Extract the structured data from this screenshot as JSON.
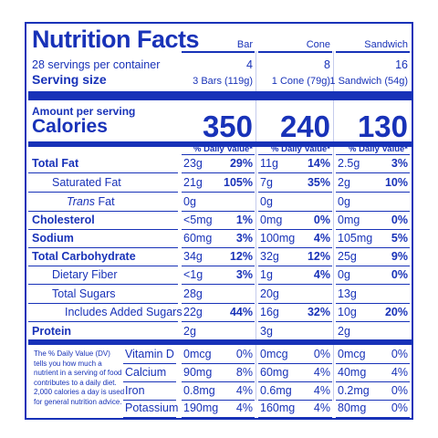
{
  "title": "Nutrition Facts",
  "servings_per_container": "28 servings per container",
  "serving_size_label": "Serving size",
  "amount_per_serving": "Amount per serving",
  "calories_label": "Calories",
  "dv_header": "% Daily Value*",
  "columns": [
    {
      "name": "Bar",
      "count": "4",
      "serving": "3 Bars (119g)",
      "calories": "350"
    },
    {
      "name": "Cone",
      "count": "8",
      "serving": "1 Cone (79g)",
      "calories": "240"
    },
    {
      "name": "Sandwich",
      "count": "16",
      "serving": "1 Sandwich (54g)",
      "calories": "130"
    }
  ],
  "nutrients": [
    {
      "label": "Total Fat",
      "bold": true,
      "values": [
        {
          "amt": "23g",
          "dv": "29%"
        },
        {
          "amt": "11g",
          "dv": "14%"
        },
        {
          "amt": "2.5g",
          "dv": "3%"
        }
      ]
    },
    {
      "label": "Saturated Fat",
      "values": [
        {
          "amt": "21g",
          "dv": "105%"
        },
        {
          "amt": "7g",
          "dv": "35%"
        },
        {
          "amt": "2g",
          "dv": "10%"
        }
      ]
    },
    {
      "label": "Trans Fat",
      "italic_part": "Trans",
      "values": [
        {
          "amt": "0g",
          "dv": ""
        },
        {
          "amt": "0g",
          "dv": ""
        },
        {
          "amt": "0g",
          "dv": ""
        }
      ]
    },
    {
      "label": "Cholesterol",
      "bold": true,
      "values": [
        {
          "amt": "<5mg",
          "dv": "1%"
        },
        {
          "amt": "0mg",
          "dv": "0%"
        },
        {
          "amt": "0mg",
          "dv": "0%"
        }
      ]
    },
    {
      "label": "Sodium",
      "bold": true,
      "values": [
        {
          "amt": "60mg",
          "dv": "3%"
        },
        {
          "amt": "100mg",
          "dv": "4%"
        },
        {
          "amt": "105mg",
          "dv": "5%"
        }
      ]
    },
    {
      "label": "Total Carbohydrate",
      "bold": true,
      "values": [
        {
          "amt": "34g",
          "dv": "12%"
        },
        {
          "amt": "32g",
          "dv": "12%"
        },
        {
          "amt": "25g",
          "dv": "9%"
        }
      ]
    },
    {
      "label": "Dietary Fiber",
      "values": [
        {
          "amt": "<1g",
          "dv": "3%"
        },
        {
          "amt": "1g",
          "dv": "4%"
        },
        {
          "amt": "0g",
          "dv": "0%"
        }
      ]
    },
    {
      "label": "Total Sugars",
      "values": [
        {
          "amt": "28g",
          "dv": ""
        },
        {
          "amt": "20g",
          "dv": ""
        },
        {
          "amt": "13g",
          "dv": ""
        }
      ]
    },
    {
      "label": "Includes Added Sugars",
      "values": [
        {
          "amt": "22g",
          "dv": "44%"
        },
        {
          "amt": "16g",
          "dv": "32%"
        },
        {
          "amt": "10g",
          "dv": "20%"
        }
      ]
    },
    {
      "label": "Protein",
      "bold": true,
      "values": [
        {
          "amt": "2g",
          "dv": ""
        },
        {
          "amt": "3g",
          "dv": ""
        },
        {
          "amt": "2g",
          "dv": ""
        }
      ]
    }
  ],
  "vitamins": [
    {
      "label": "Vitamin D",
      "values": [
        {
          "amt": "0mcg",
          "dv": "0%"
        },
        {
          "amt": "0mcg",
          "dv": "0%"
        },
        {
          "amt": "0mcg",
          "dv": "0%"
        }
      ]
    },
    {
      "label": "Calcium",
      "values": [
        {
          "amt": "90mg",
          "dv": "8%"
        },
        {
          "amt": "60mg",
          "dv": "4%"
        },
        {
          "amt": "40mg",
          "dv": "4%"
        }
      ]
    },
    {
      "label": "Iron",
      "values": [
        {
          "amt": "0.8mg",
          "dv": "4%"
        },
        {
          "amt": "0.6mg",
          "dv": "4%"
        },
        {
          "amt": "0.2mg",
          "dv": "0%"
        }
      ]
    },
    {
      "label": "Potassium",
      "values": [
        {
          "amt": "190mg",
          "dv": "4%"
        },
        {
          "amt": "160mg",
          "dv": "4%"
        },
        {
          "amt": "80mg",
          "dv": "0%"
        }
      ]
    }
  ],
  "footnote": "The % Daily Value (DV) tells you how much a nutrient in a serving of food contributes to a daily diet. 2,000 calories a day is used for general nutrition advice.",
  "footnote_lines": [
    "The % Daily Value (DV)",
    "tells you how much a",
    "nutrient in a serving of food",
    "contributes to a daily diet.",
    "2,000 calories a day is used",
    "for general nutrition advice."
  ],
  "colors": {
    "ink": "#1832b8",
    "background": "#ffffff"
  }
}
